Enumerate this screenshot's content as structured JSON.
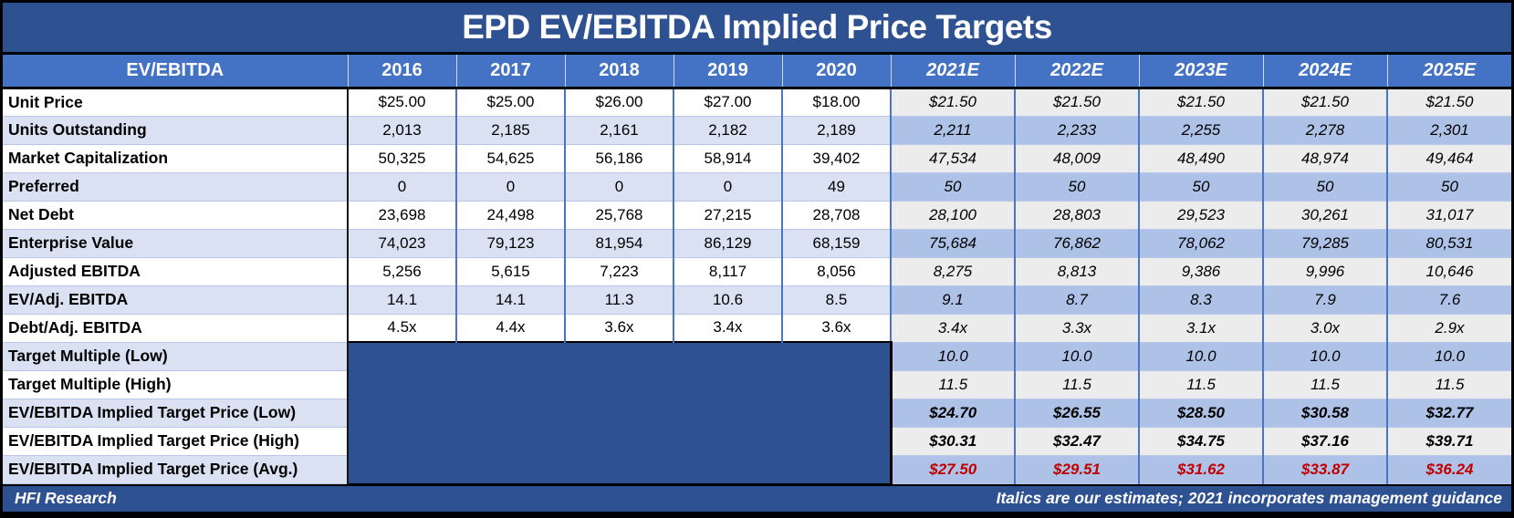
{
  "title": "EPD EV/EBITDA Implied Price Targets",
  "footer": {
    "left": "HFI Research",
    "right": "Italics are our estimates; 2021 incorporates management guidance"
  },
  "colors": {
    "navy": "#2E5191",
    "header-blue": "#4472C4",
    "row-lavender": "#D9E1F2",
    "est-gray": "#ECECEC",
    "est-blue": "#AEC2E7",
    "red": "#C00000"
  },
  "chart_data": {
    "type": "table",
    "title": "EPD EV/EBITDA Implied Price Targets",
    "columns": [
      "EV/EBITDA",
      "2016",
      "2017",
      "2018",
      "2019",
      "2020",
      "2021E",
      "2022E",
      "2023E",
      "2024E",
      "2025E"
    ],
    "estimate_columns_start": 6,
    "notes": "2021E-2025E columns are italic estimates; dark blue block means no historical data for target-multiple and implied-price rows",
    "rows": [
      {
        "label": "Unit Price",
        "historical": [
          "$25.00",
          "$25.00",
          "$26.00",
          "$27.00",
          "$18.00"
        ],
        "estimates": [
          "$21.50",
          "$21.50",
          "$21.50",
          "$21.50",
          "$21.50"
        ],
        "value_style": "normal"
      },
      {
        "label": "Units Outstanding",
        "historical": [
          "2,013",
          "2,185",
          "2,161",
          "2,182",
          "2,189"
        ],
        "estimates": [
          "2,211",
          "2,233",
          "2,255",
          "2,278",
          "2,301"
        ],
        "value_style": "normal"
      },
      {
        "label": "Market Capitalization",
        "historical": [
          "50,325",
          "54,625",
          "56,186",
          "58,914",
          "39,402"
        ],
        "estimates": [
          "47,534",
          "48,009",
          "48,490",
          "48,974",
          "49,464"
        ],
        "value_style": "normal"
      },
      {
        "label": "Preferred",
        "historical": [
          "0",
          "0",
          "0",
          "0",
          "49"
        ],
        "estimates": [
          "50",
          "50",
          "50",
          "50",
          "50"
        ],
        "value_style": "normal"
      },
      {
        "label": "Net Debt",
        "historical": [
          "23,698",
          "24,498",
          "25,768",
          "27,215",
          "28,708"
        ],
        "estimates": [
          "28,100",
          "28,803",
          "29,523",
          "30,261",
          "31,017"
        ],
        "value_style": "normal"
      },
      {
        "label": "Enterprise Value",
        "historical": [
          "74,023",
          "79,123",
          "81,954",
          "86,129",
          "68,159"
        ],
        "estimates": [
          "75,684",
          "76,862",
          "78,062",
          "79,285",
          "80,531"
        ],
        "value_style": "normal"
      },
      {
        "label": "Adjusted EBITDA",
        "historical": [
          "5,256",
          "5,615",
          "7,223",
          "8,117",
          "8,056"
        ],
        "estimates": [
          "8,275",
          "8,813",
          "9,386",
          "9,996",
          "10,646"
        ],
        "value_style": "normal"
      },
      {
        "label": "EV/Adj. EBITDA",
        "historical": [
          "14.1",
          "14.1",
          "11.3",
          "10.6",
          "8.5"
        ],
        "estimates": [
          "9.1",
          "8.7",
          "8.3",
          "7.9",
          "7.6"
        ],
        "value_style": "normal"
      },
      {
        "label": "Debt/Adj. EBITDA",
        "historical": [
          "4.5x",
          "4.4x",
          "3.6x",
          "3.4x",
          "3.6x"
        ],
        "estimates": [
          "3.4x",
          "3.3x",
          "3.1x",
          "3.0x",
          "2.9x"
        ],
        "value_style": "normal"
      },
      {
        "label": "Target Multiple (Low)",
        "historical": null,
        "estimates": [
          "10.0",
          "10.0",
          "10.0",
          "10.0",
          "10.0"
        ],
        "value_style": "normal"
      },
      {
        "label": "Target Multiple (High)",
        "historical": null,
        "estimates": [
          "11.5",
          "11.5",
          "11.5",
          "11.5",
          "11.5"
        ],
        "value_style": "normal"
      },
      {
        "label": "EV/EBITDA Implied Target Price (Low)",
        "historical": null,
        "estimates": [
          "$24.70",
          "$26.55",
          "$28.50",
          "$30.58",
          "$32.77"
        ],
        "value_style": "bold"
      },
      {
        "label": "EV/EBITDA Implied Target Price (High)",
        "historical": null,
        "estimates": [
          "$30.31",
          "$32.47",
          "$34.75",
          "$37.16",
          "$39.71"
        ],
        "value_style": "bold"
      },
      {
        "label": "EV/EBITDA Implied Target Price (Avg.)",
        "historical": null,
        "estimates": [
          "$27.50",
          "$29.51",
          "$31.62",
          "$33.87",
          "$36.24"
        ],
        "value_style": "red-bold"
      }
    ]
  }
}
